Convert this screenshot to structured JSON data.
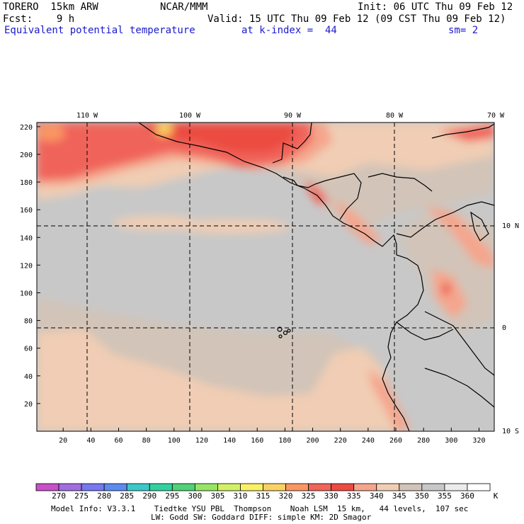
{
  "header": {
    "model": "TORERO  15km ARW",
    "center": "NCAR/MMM",
    "init": "Init: 06 UTC Thu 09 Feb 12",
    "fcst": "Fcst:    9 h",
    "valid": "Valid: 15 UTC Thu 09 Feb 12 (09 CST Thu 09 Feb 12)",
    "field": "Equivalent potential temperature",
    "level": "at k-index =  44",
    "smooth": "sm= 2"
  },
  "map": {
    "lon_labels": [
      "110 W",
      "100 W",
      "90 W",
      "80 W",
      "70 W"
    ],
    "lat_labels": [
      "10 N",
      "0",
      "10 S"
    ],
    "y_ticks": [
      "20",
      "40",
      "60",
      "80",
      "100",
      "120",
      "140",
      "160",
      "180",
      "200",
      "220"
    ],
    "x_ticks": [
      "20",
      "40",
      "60",
      "80",
      "100",
      "120",
      "140",
      "160",
      "180",
      "200",
      "220",
      "240",
      "260",
      "280",
      "300",
      "320"
    ],
    "colors": {
      "ocean_gray": "#c8c8c8",
      "grid_lines": "#000000",
      "warm_345": "#d2c4b8",
      "peach_340": "#f0cdb4",
      "salmon_335": "#f5a58c",
      "red_330": "#f0645a",
      "red_325": "#eb4b41",
      "yellow_310": "#fad264"
    }
  },
  "colorbar": {
    "unit": "K",
    "labels": [
      "270",
      "275",
      "280",
      "285",
      "290",
      "295",
      "300",
      "305",
      "310",
      "315",
      "320",
      "325",
      "330",
      "335",
      "340",
      "345",
      "350",
      "355",
      "360"
    ],
    "colors": [
      "#c850c8",
      "#a06ee0",
      "#7878f0",
      "#5a8cf0",
      "#3cc8c8",
      "#32d2a0",
      "#50d278",
      "#96e664",
      "#d2f064",
      "#faf064",
      "#fad264",
      "#fa9664",
      "#f0645a",
      "#eb4b41",
      "#f5a58c",
      "#f0cdb4",
      "#d2c4b8",
      "#c8c8c8",
      "#ebebeb",
      "#ffffff"
    ]
  },
  "footer": {
    "line1": "Model Info: V3.3.1    Tiedtke YSU PBL  Thompson    Noah LSM  15 km,   44 levels,  107 sec",
    "line2": "LW: Godd SW: Goddard DIFF: simple KM: 2D Smagor"
  }
}
